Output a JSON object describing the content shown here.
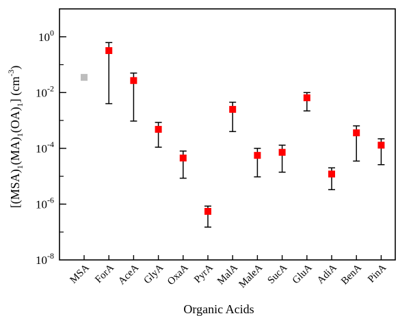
{
  "chart_data": {
    "type": "scatter",
    "title": "",
    "xlabel": "Organic Acids",
    "ylabel_parts": [
      "[(MSA)",
      "1",
      "(MA)",
      "1",
      "(OA)",
      "1",
      "] (cm",
      "-3",
      ")"
    ],
    "y_scale": "log",
    "ylim": [
      1e-08,
      10
    ],
    "y_ticks": [
      {
        "value": 1e-08,
        "base": "10",
        "exp": "-8"
      },
      {
        "value": 1e-06,
        "base": "10",
        "exp": "-6"
      },
      {
        "value": 0.0001,
        "base": "10",
        "exp": "-4"
      },
      {
        "value": 0.01,
        "base": "10",
        "exp": "-2"
      },
      {
        "value": 1,
        "base": "10",
        "exp": "0"
      }
    ],
    "grid": false,
    "categories": [
      "MSA",
      "ForA",
      "AceA",
      "GlyA",
      "OxaA",
      "PyrA",
      "MalA",
      "MaleA",
      "SucA",
      "GluA",
      "AdiA",
      "BenA",
      "PinA"
    ],
    "points": [
      {
        "category": "MSA",
        "value": 0.035,
        "low": null,
        "high": null,
        "color": "#bdbdbd"
      },
      {
        "category": "ForA",
        "value": 0.32,
        "low": 0.004,
        "high": 0.62,
        "color": "#ff0000"
      },
      {
        "category": "AceA",
        "value": 0.027,
        "low": 0.00095,
        "high": 0.05,
        "color": "#ff0000"
      },
      {
        "category": "GlyA",
        "value": 0.00048,
        "low": 0.00011,
        "high": 0.00085,
        "color": "#ff0000"
      },
      {
        "category": "OxaA",
        "value": 4.5e-05,
        "low": 8.5e-06,
        "high": 8e-05,
        "color": "#ff0000"
      },
      {
        "category": "PyrA",
        "value": 5.5e-07,
        "low": 1.5e-07,
        "high": 8.5e-07,
        "color": "#ff0000"
      },
      {
        "category": "MalA",
        "value": 0.0025,
        "low": 0.0004,
        "high": 0.0045,
        "color": "#ff0000"
      },
      {
        "category": "MaleA",
        "value": 5.6e-05,
        "low": 9.5e-06,
        "high": 0.0001,
        "color": "#ff0000"
      },
      {
        "category": "SucA",
        "value": 7.2e-05,
        "low": 1.4e-05,
        "high": 0.00013,
        "color": "#ff0000"
      },
      {
        "category": "GluA",
        "value": 0.0065,
        "low": 0.0022,
        "high": 0.01,
        "color": "#ff0000"
      },
      {
        "category": "AdiA",
        "value": 1.2e-05,
        "low": 3.3e-06,
        "high": 2e-05,
        "color": "#ff0000"
      },
      {
        "category": "BenA",
        "value": 0.00036,
        "low": 3.5e-05,
        "high": 0.00064,
        "color": "#ff0000"
      },
      {
        "category": "PinA",
        "value": 0.00013,
        "low": 2.6e-05,
        "high": 0.00022,
        "color": "#ff0000"
      }
    ]
  }
}
